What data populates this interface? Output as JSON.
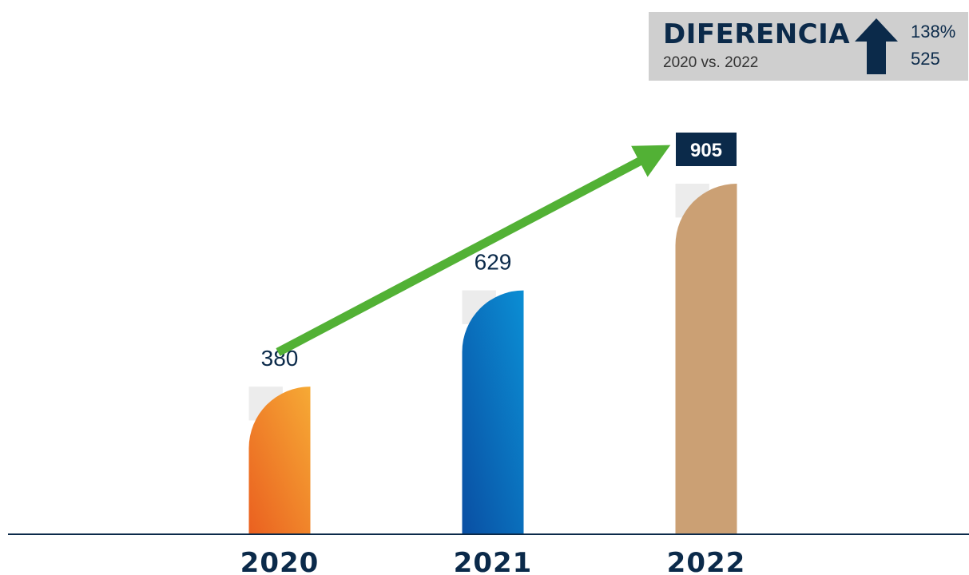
{
  "chart_data": {
    "type": "bar",
    "categories": [
      "2020",
      "2021",
      "2022"
    ],
    "values": [
      380,
      629,
      905
    ],
    "value_labels": [
      "380",
      "629",
      "905"
    ],
    "ylim": [
      0,
      1000
    ],
    "grid": false,
    "bar_colors": [
      [
        "#f6aa35",
        "#ea6020"
      ],
      [
        "#0b8ed4",
        "#0a4fa3"
      ],
      [
        "#cba074",
        "#cba074"
      ]
    ],
    "highlight_label_bg": "#0b2a4a",
    "trend_arrow_color": "#52b135",
    "axis_color": "#0b2a4a"
  },
  "difference": {
    "title": "DIFERENCIA",
    "subtitle": "2020 vs. 2022",
    "direction_icon": "up-arrow-icon",
    "percent": "138%",
    "absolute": "525"
  }
}
